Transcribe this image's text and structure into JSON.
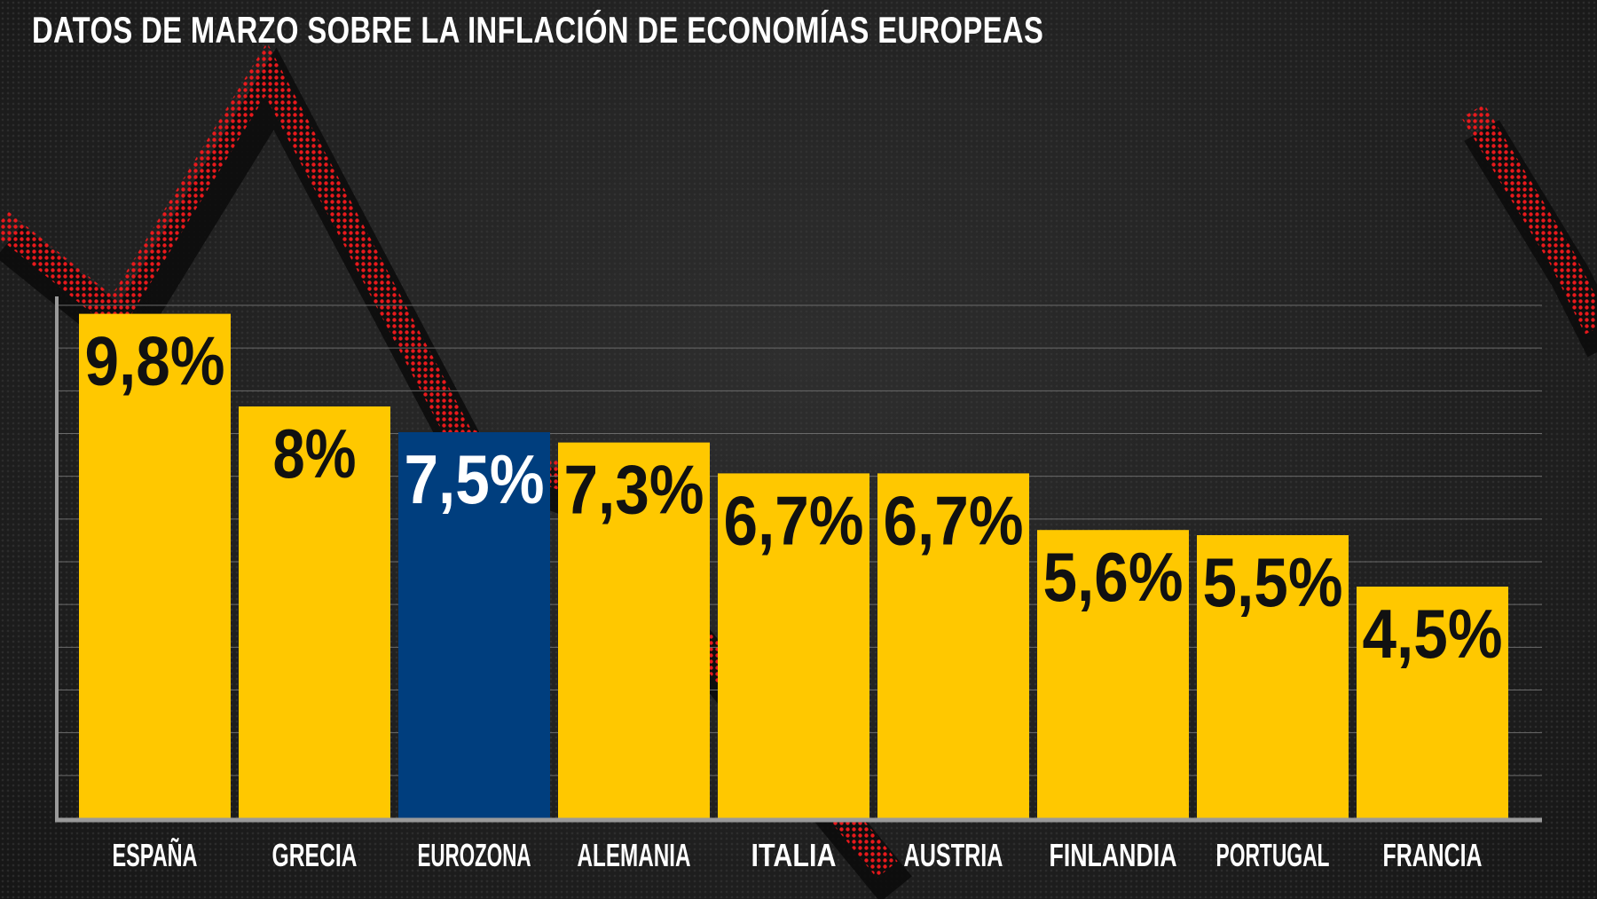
{
  "title": "DATOS DE MARZO SOBRE LA INFLACIÓN DE ECONOMÍAS EUROPEAS",
  "colors": {
    "bar": "#ffc800",
    "highlight": "#003e7e",
    "label_dark": "#111111",
    "label_light": "#ffffff",
    "category_text": "#ffffff",
    "grid": "#6a6a6a",
    "axis": "#9a9a9a",
    "trend_line": "#e8191c"
  },
  "chart_data": {
    "type": "bar",
    "title": "DATOS DE MARZO SOBRE LA INFLACIÓN DE ECONOMÍAS EUROPEAS",
    "xlabel": "",
    "ylabel": "",
    "ylim": [
      0,
      10
    ],
    "grid": true,
    "legend": "none",
    "categories": [
      "ESPAÑA",
      "GRECIA",
      "EUROZONA",
      "ALEMANIA",
      "ITALIA",
      "AUSTRIA",
      "FINLANDIA",
      "PORTUGAL",
      "FRANCIA"
    ],
    "values": [
      9.8,
      8,
      7.5,
      7.3,
      6.7,
      6.7,
      5.6,
      5.5,
      4.5
    ],
    "value_labels": [
      "9,8%",
      "8%",
      "7,5%",
      "7,3%",
      "6,7%",
      "6,7%",
      "5,6%",
      "5,5%",
      "4,5%"
    ],
    "highlight_category": "EUROZONA"
  }
}
